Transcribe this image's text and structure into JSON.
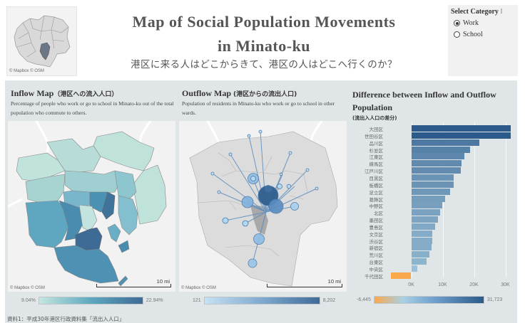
{
  "minimap": {
    "attribution": "© Mapbox  © OSM"
  },
  "header": {
    "title_line1": "Map of Social Population Movements",
    "title_line2": "in Minato-ku",
    "subtitle": "港区に来る人はどこからきて、港区の人はどこへ行くのか？"
  },
  "category_filter": {
    "title": "Select Category",
    "options": [
      {
        "label": "Work",
        "selected": true
      },
      {
        "label": "School",
        "selected": false
      }
    ]
  },
  "inflow": {
    "title": "Inflow Map",
    "title_jp": "（港区への流入人口）",
    "description": "Percentage of people who work or go to school in Minato-ku out of the total population who commute to others.",
    "attribution": "© Mapbox  © OSM",
    "scale_label": "10 mi",
    "legend_min": "9.04%",
    "legend_max": "22.94%",
    "color_low": "#c4e6df",
    "color_high": "#3e6b96"
  },
  "outflow": {
    "title": "Outflow Map",
    "title_jp": "(港区からの流出人口)",
    "description": "Population of residents in Minato-ku who work or go to school in other wards.",
    "attribution": "© Mapbox  © OSM",
    "scale_label": "10 mi",
    "legend_min": "121",
    "legend_max": "8,202",
    "color_low": "#c6e1f2",
    "color_high": "#3f6b97"
  },
  "difference": {
    "title": "Difference between Inflow and Outflow Population",
    "title_jp": "(流出入人口の差分)",
    "legend_min": "-6,445",
    "legend_max": "31,723"
  },
  "chart_data": {
    "type": "bar",
    "orientation": "horizontal",
    "title": "Difference between Inflow and Outflow Population (流出入人口の差分)",
    "xlabel": "",
    "ylabel": "",
    "categories": [
      "大田区",
      "世田谷区",
      "品川区",
      "杉並区",
      "江東区",
      "練馬区",
      "江戸川区",
      "目黒区",
      "板橋区",
      "足立区",
      "葛飾区",
      "中野区",
      "北区",
      "墨田区",
      "豊島区",
      "文京区",
      "渋谷区",
      "新宿区",
      "荒川区",
      "台東区",
      "中央区",
      "千代田区"
    ],
    "values": [
      31723,
      31600,
      21700,
      18700,
      17000,
      16000,
      15700,
      13500,
      13500,
      12300,
      10700,
      9800,
      9200,
      8500,
      7600,
      6600,
      6600,
      6500,
      5700,
      4800,
      1900,
      -6445
    ],
    "xticks": [
      "0K",
      "10K",
      "20K",
      "30K"
    ],
    "xlim": [
      -8000,
      35000
    ],
    "grid": true,
    "color_scale": {
      "min": -6445,
      "max": 31723,
      "min_color": "#f9a94a",
      "mid_color": "#a9d0e4",
      "max_color": "#2c5a8a"
    }
  },
  "footer": {
    "source": "資料1：平成30年港区行政資料集「流出入人口」"
  }
}
